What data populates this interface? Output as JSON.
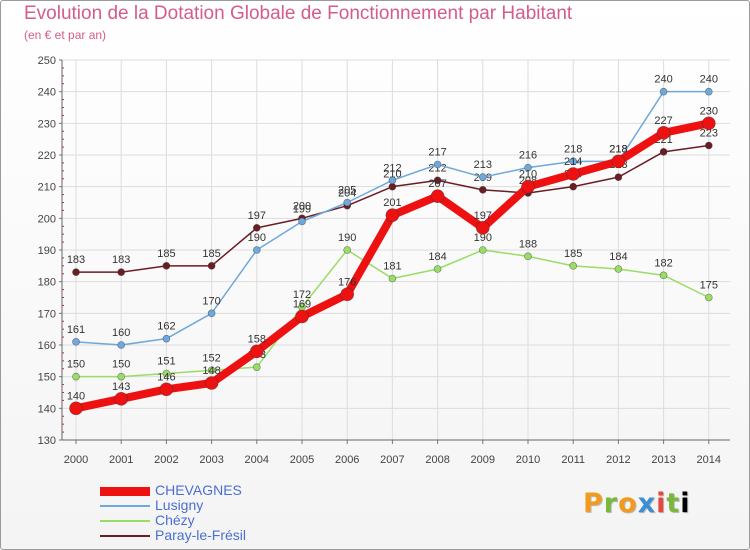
{
  "header": {
    "title": "Evolution de la Dotation Globale de Fonctionnement par Habitant",
    "subtitle": "(en € et par an)"
  },
  "logo": {
    "letters": [
      "P",
      "r",
      "o",
      "x",
      "i",
      "t",
      "i"
    ]
  },
  "chart_data": {
    "type": "line",
    "title": "Evolution de la Dotation Globale de Fonctionnement par Habitant",
    "subtitle": "(en € et par an)",
    "xlabel": "",
    "ylabel": "",
    "ylim": [
      130,
      250
    ],
    "yticks": [
      130,
      140,
      150,
      160,
      170,
      180,
      190,
      200,
      210,
      220,
      230,
      240,
      250
    ],
    "grid": true,
    "legend_position": "bottom-left",
    "x": [
      2000,
      2001,
      2002,
      2003,
      2004,
      2005,
      2006,
      2007,
      2008,
      2009,
      2010,
      2011,
      2012,
      2013,
      2014
    ],
    "series": [
      {
        "name": "Paray-le-Frésil",
        "color": "#6b1d24",
        "width": 1.5,
        "marker": 3.5,
        "values": [
          183,
          183,
          185,
          185,
          197,
          200,
          204,
          210,
          212,
          209,
          208,
          210,
          213,
          221,
          223
        ]
      },
      {
        "name": "Chézy",
        "color": "#99dd66",
        "width": 1.5,
        "marker": 3.5,
        "values": [
          150,
          150,
          151,
          152,
          153,
          172,
          190,
          181,
          184,
          190,
          188,
          185,
          184,
          182,
          175
        ]
      },
      {
        "name": "Lusigny",
        "color": "#6fa8dc",
        "width": 1.5,
        "marker": 3.5,
        "values": [
          161,
          160,
          162,
          170,
          190,
          199,
          205,
          212,
          217,
          213,
          216,
          218,
          218,
          240,
          240
        ]
      },
      {
        "name": "CHEVAGNES",
        "color": "#ee1111",
        "width": 8,
        "marker": 6.5,
        "values": [
          140,
          143,
          146,
          148,
          158,
          169,
          176,
          201,
          207,
          197,
          210,
          214,
          218,
          227,
          230
        ]
      }
    ],
    "legend": [
      "CHEVAGNES",
      "Lusigny",
      "Chézy",
      "Paray-le-Frésil"
    ]
  }
}
